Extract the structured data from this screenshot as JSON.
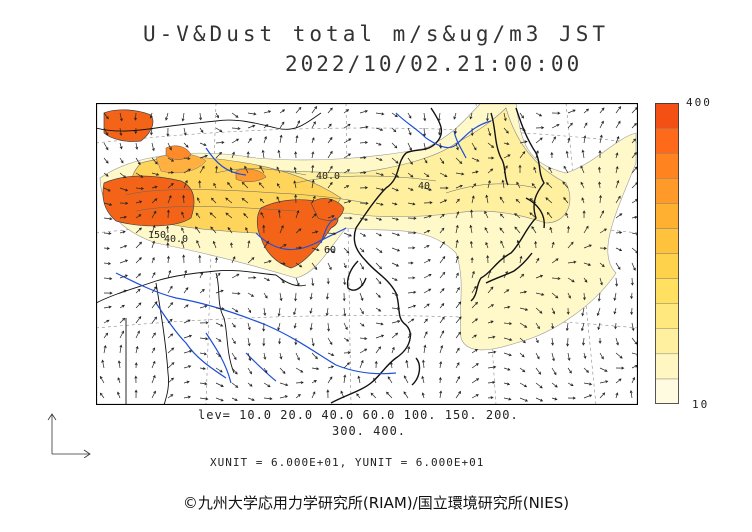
{
  "title": "U-V&Dust total m/s&ug/m3 JST",
  "datetime": "2022/10/02.21:00:00",
  "colorbar": {
    "max_label": "400",
    "min_label": "10",
    "colors": [
      "#fffbe0",
      "#fff6c2",
      "#fff0a0",
      "#ffe97f",
      "#ffe060",
      "#ffd24c",
      "#ffc23c",
      "#ffb030",
      "#ff9a28",
      "#ff8420",
      "#ff6a1a",
      "#f45014"
    ]
  },
  "contour_labels": [
    "40.0",
    "40",
    "150",
    "40.0",
    "60"
  ],
  "levels_line1": "lev= 10.0 20.0 40.0 60.0 100. 150. 200.",
  "levels_line2": "300. 400.",
  "units": "XUNIT = 6.000E+01, YUNIT = 6.000E+01",
  "copyright": "©九州大学応用力学研究所(RIAM)/国立環境研究所(NIES)",
  "colors": {
    "coast": "#111111",
    "river": "#1f4fd8",
    "arrow": "#222222",
    "frame": "#000000"
  }
}
